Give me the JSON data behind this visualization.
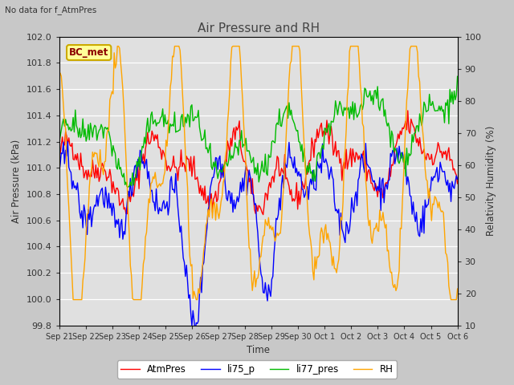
{
  "title": "Air Pressure and RH",
  "subtitle": "No data for f_AtmPres",
  "ylabel_left": "Air Pressure (kPa)",
  "ylabel_right": "Relativity Humidity (%)",
  "xlabel": "Time",
  "annotation": "BC_met",
  "ylim_left": [
    99.8,
    102.0
  ],
  "ylim_right": [
    10,
    100
  ],
  "yticks_left": [
    99.8,
    100.0,
    100.2,
    100.4,
    100.6,
    100.8,
    101.0,
    101.2,
    101.4,
    101.6,
    101.8,
    102.0
  ],
  "yticks_right": [
    10,
    20,
    30,
    40,
    50,
    60,
    70,
    80,
    90,
    100
  ],
  "xtick_labels": [
    "Sep 21",
    "Sep 22",
    "Sep 23",
    "Sep 24",
    "Sep 25",
    "Sep 26",
    "Sep 27",
    "Sep 28",
    "Sep 29",
    "Sep 30",
    "Oct 1",
    "Oct 2",
    "Oct 3",
    "Oct 4",
    "Oct 5",
    "Oct 6"
  ],
  "colors": {
    "AtmPres": "#ff0000",
    "li75_p": "#0000ff",
    "li77_pres": "#00bb00",
    "RH": "#ffa500"
  },
  "legend_labels": [
    "AtmPres",
    "li75_p",
    "li77_pres",
    "RH"
  ],
  "fig_bg_color": "#c8c8c8",
  "plot_bg_color": "#e0e0e0",
  "grid_color": "#ffffff",
  "n_points": 370
}
